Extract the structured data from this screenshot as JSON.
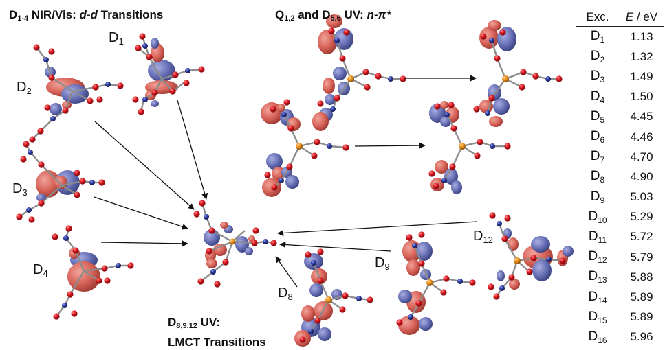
{
  "titles": {
    "nir": {
      "main": "D",
      "sub": "1-4",
      "tail": " NIR/Vis: ",
      "italic": "d-d",
      "end": " Transitions"
    },
    "uv": {
      "main": "Q",
      "sub": "1,2",
      "mid": " and D",
      "sub2": "5,6",
      "tail": " UV: ",
      "italic": "n-π*"
    },
    "lmct": {
      "main": "D",
      "sub": "8,9,12",
      "tail": " UV:",
      "line2": "LMCT Transitions"
    }
  },
  "labels": {
    "d1": {
      "main": "D",
      "sub": "1"
    },
    "d2": {
      "main": "D",
      "sub": "2"
    },
    "d3": {
      "main": "D",
      "sub": "3"
    },
    "d4": {
      "main": "D",
      "sub": "4"
    },
    "d8": {
      "main": "D",
      "sub": "8"
    },
    "d9": {
      "main": "D",
      "sub": "9"
    },
    "d12": {
      "main": "D",
      "sub": "12"
    }
  },
  "table": {
    "col1_header": "Exc.",
    "col2_header_italic": "E",
    "col2_header_unit": " / eV",
    "rows": [
      {
        "main": "D",
        "sub": "1",
        "value": "1.13"
      },
      {
        "main": "D",
        "sub": "2",
        "value": "1.32"
      },
      {
        "main": "D",
        "sub": "3",
        "value": "1.49"
      },
      {
        "main": "D",
        "sub": "4",
        "value": "1.50"
      },
      {
        "main": "D",
        "sub": "5",
        "value": "4.45"
      },
      {
        "main": "D",
        "sub": "6",
        "value": "4.46"
      },
      {
        "main": "D",
        "sub": "7",
        "value": "4.70"
      },
      {
        "main": "D",
        "sub": "8",
        "value": "4.90"
      },
      {
        "main": "D",
        "sub": "9",
        "value": "5.03"
      },
      {
        "main": "D",
        "sub": "10",
        "value": "5.29"
      },
      {
        "main": "D",
        "sub": "11",
        "value": "5.72"
      },
      {
        "main": "D",
        "sub": "12",
        "value": "5.79"
      },
      {
        "main": "D",
        "sub": "13",
        "value": "5.88"
      },
      {
        "main": "D",
        "sub": "14",
        "value": "5.89"
      },
      {
        "main": "D",
        "sub": "15",
        "value": "5.89"
      },
      {
        "main": "D",
        "sub": "16",
        "value": "5.96"
      }
    ]
  },
  "colors": {
    "orbital_positive": "#d9655a",
    "orbital_negative": "#6a72b8",
    "oxygen_atom": "#d8141c",
    "nitrogen_atom": "#2b3a9c",
    "metal_atom": "#e8901c",
    "bond": "#8c8c8c",
    "arrow": "#111111"
  }
}
